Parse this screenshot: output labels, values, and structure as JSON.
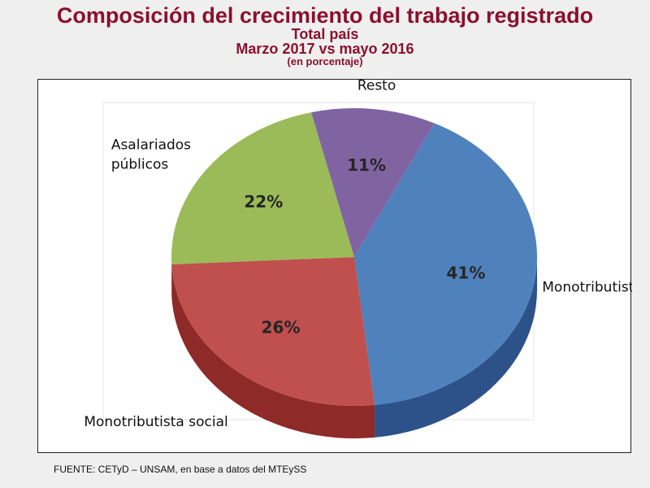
{
  "title": {
    "main": "Composición del crecimiento del trabajo registrado",
    "line2": "Total país",
    "line3": "Marzo 2017 vs mayo 2016",
    "line4": "(en porcentaje)"
  },
  "source": "FUENTE: CETyD – UNSAM, en base a datos del MTEySS",
  "chart_data": {
    "type": "pie",
    "title": "Composición del crecimiento del trabajo registrado",
    "unit": "%",
    "slices": [
      {
        "label": "Monotributista",
        "value": 41,
        "value_label": "41%",
        "color": "#4f81bd",
        "side_color": "#2d5289"
      },
      {
        "label": "Monotributista social",
        "value": 26,
        "value_label": "26%",
        "color": "#c0504d",
        "side_color": "#8e2a28"
      },
      {
        "label": "Asalariados públicos",
        "label_lines": [
          "Asalariados",
          "públicos"
        ],
        "value": 22,
        "value_label": "22%",
        "color": "#9bbb59",
        "side_color": "#6d8a35"
      },
      {
        "label": "Resto",
        "value": 11,
        "value_label": "11%",
        "color": "#8064a2",
        "side_color": "#5a4478"
      }
    ]
  }
}
